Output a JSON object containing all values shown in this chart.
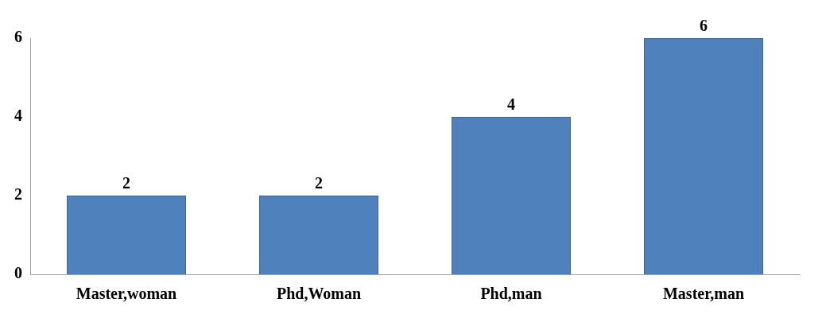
{
  "chart_data": {
    "type": "bar",
    "categories": [
      "Master,woman",
      "Phd,Woman",
      "Phd,man",
      "Master,man"
    ],
    "values": [
      2,
      2,
      4,
      6
    ],
    "color": "#4f81bd",
    "ylim": [
      0,
      6
    ],
    "yticks": [
      0,
      2,
      4,
      6
    ],
    "grid": false,
    "data_labels": true,
    "legend": false
  }
}
